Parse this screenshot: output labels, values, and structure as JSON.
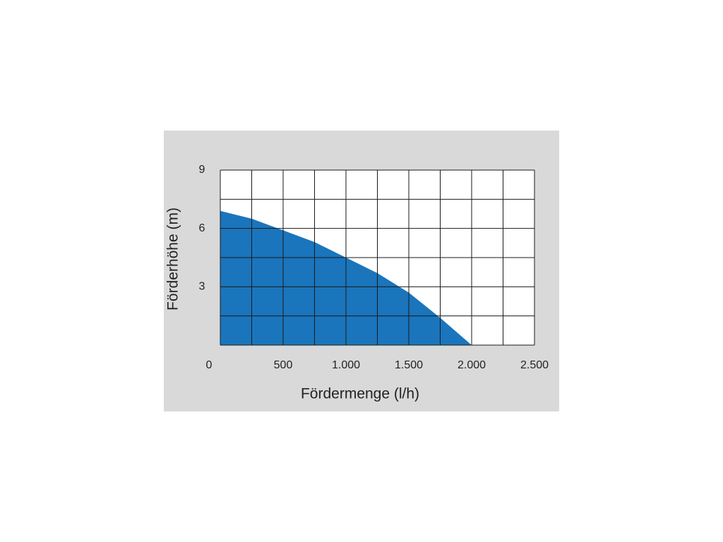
{
  "chart_data": {
    "type": "area",
    "x_label": "Fördermenge (l/h)",
    "y_label": "Förderhöhe (m)",
    "x": [
      0,
      250,
      500,
      750,
      1000,
      1250,
      1500,
      1750,
      2000
    ],
    "values": [
      6.9,
      6.5,
      5.9,
      5.3,
      4.5,
      3.7,
      2.7,
      1.4,
      0
    ],
    "color": "#1a75bc",
    "xlim": [
      0,
      2500
    ],
    "ylim": [
      0,
      9
    ],
    "xticks": [
      0,
      500,
      {
        "value": 1000,
        "label": "1.000"
      },
      {
        "value": 1500,
        "label": "1.500"
      },
      {
        "value": 2000,
        "label": "2.000"
      },
      {
        "value": 2500,
        "label": "2.500"
      }
    ],
    "yticks": [
      3,
      6,
      9
    ],
    "xgrid": [
      0,
      250,
      500,
      750,
      1000,
      1250,
      1500,
      1750,
      2000,
      2250,
      2500
    ],
    "ygrid": [
      0,
      1.5,
      3,
      4.5,
      6,
      7.5,
      9
    ],
    "grid": true
  }
}
